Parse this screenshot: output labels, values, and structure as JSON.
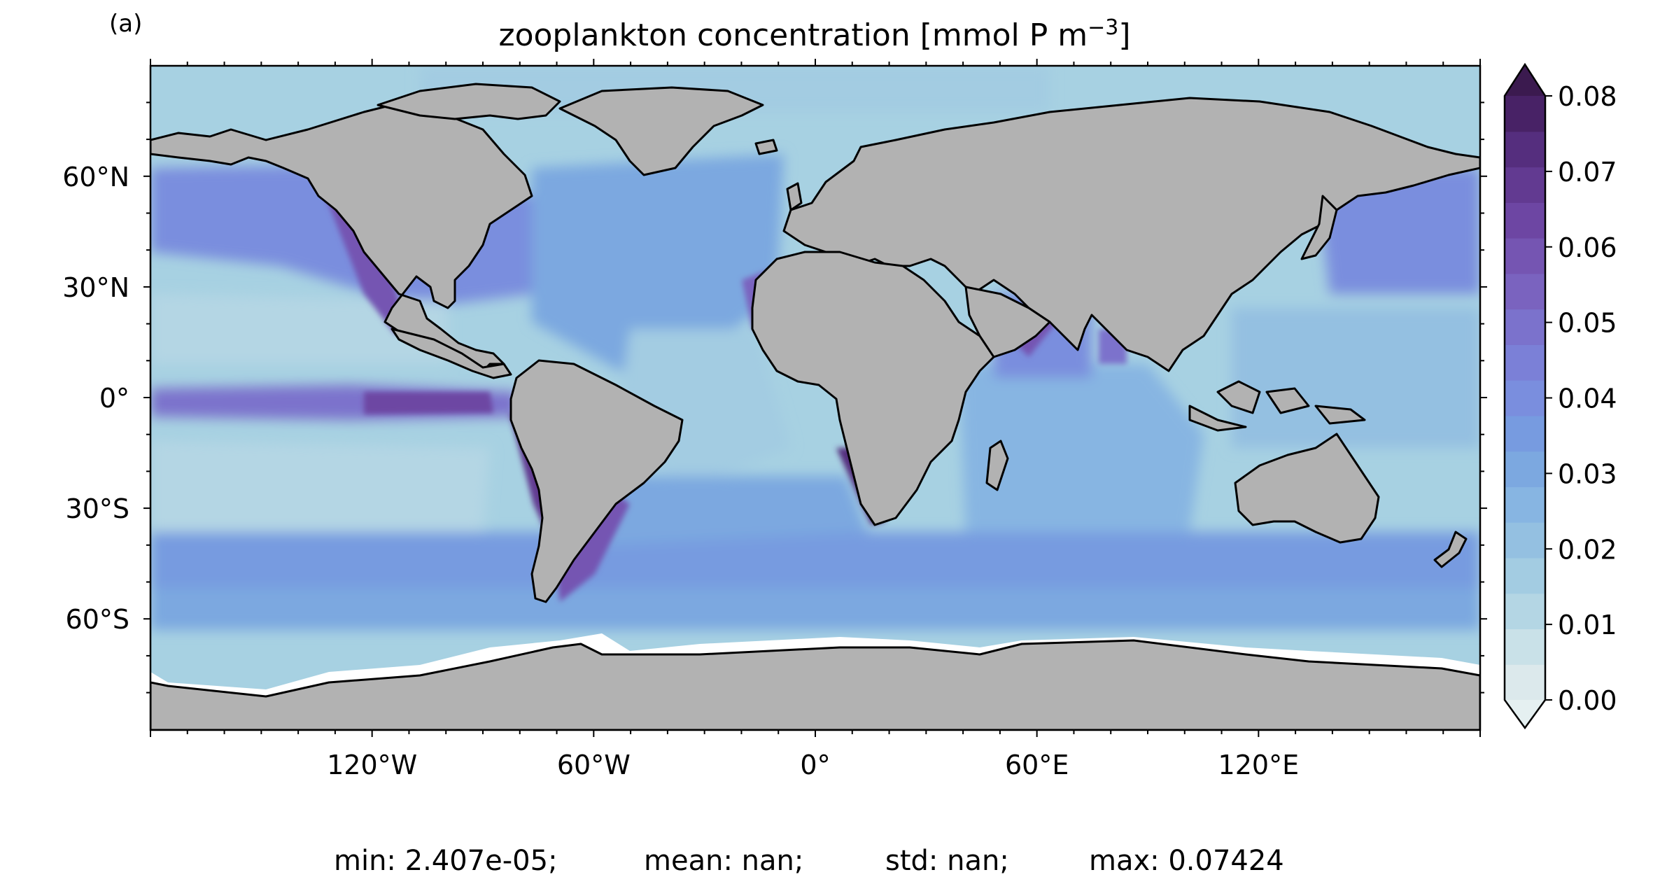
{
  "panel_label": "(a)",
  "title": "zooplankton concentration [mmol P m",
  "title_sup": "−3",
  "title_end": "]",
  "lat_ticks": [
    {
      "label": "60°N",
      "lat": 60
    },
    {
      "label": "30°N",
      "lat": 30
    },
    {
      "label": "0°",
      "lat": 0
    },
    {
      "label": "30°S",
      "lat": -30
    },
    {
      "label": "60°S",
      "lat": -60
    }
  ],
  "lon_ticks": [
    {
      "label": "120°W",
      "lon": -120
    },
    {
      "label": "60°W",
      "lon": -60
    },
    {
      "label": "0°",
      "lon": 0
    },
    {
      "label": "60°E",
      "lon": 60
    },
    {
      "label": "120°E",
      "lon": 120
    }
  ],
  "colorbar": {
    "tick_labels": [
      "0.00",
      "0.01",
      "0.02",
      "0.03",
      "0.04",
      "0.05",
      "0.06",
      "0.07",
      "0.08"
    ],
    "min": 0.0,
    "max": 0.08,
    "extend": "both",
    "colors": [
      "#dce9ec",
      "#c9e1e8",
      "#b4d6e4",
      "#a3cce2",
      "#94c0e1",
      "#87b5e2",
      "#7ca8e0",
      "#779be0",
      "#7a8ede",
      "#7b80d7",
      "#7b72cc",
      "#7a63bf",
      "#7555b2",
      "#6d46a3",
      "#623a91",
      "#552e7e",
      "#482266"
    ],
    "extend_low_color": "#e5f0f1",
    "extend_high_color": "#3b1a4f"
  },
  "stats": {
    "min": "min: 2.407e-05;",
    "mean": "mean: nan;",
    "std": "std: nan;",
    "max": "max: 0.07424"
  },
  "colors": {
    "land": "#b2b2b2",
    "ocean_base": "#a7d1e2",
    "ice_shelf": "#ffffff",
    "coastline": "#000000"
  }
}
